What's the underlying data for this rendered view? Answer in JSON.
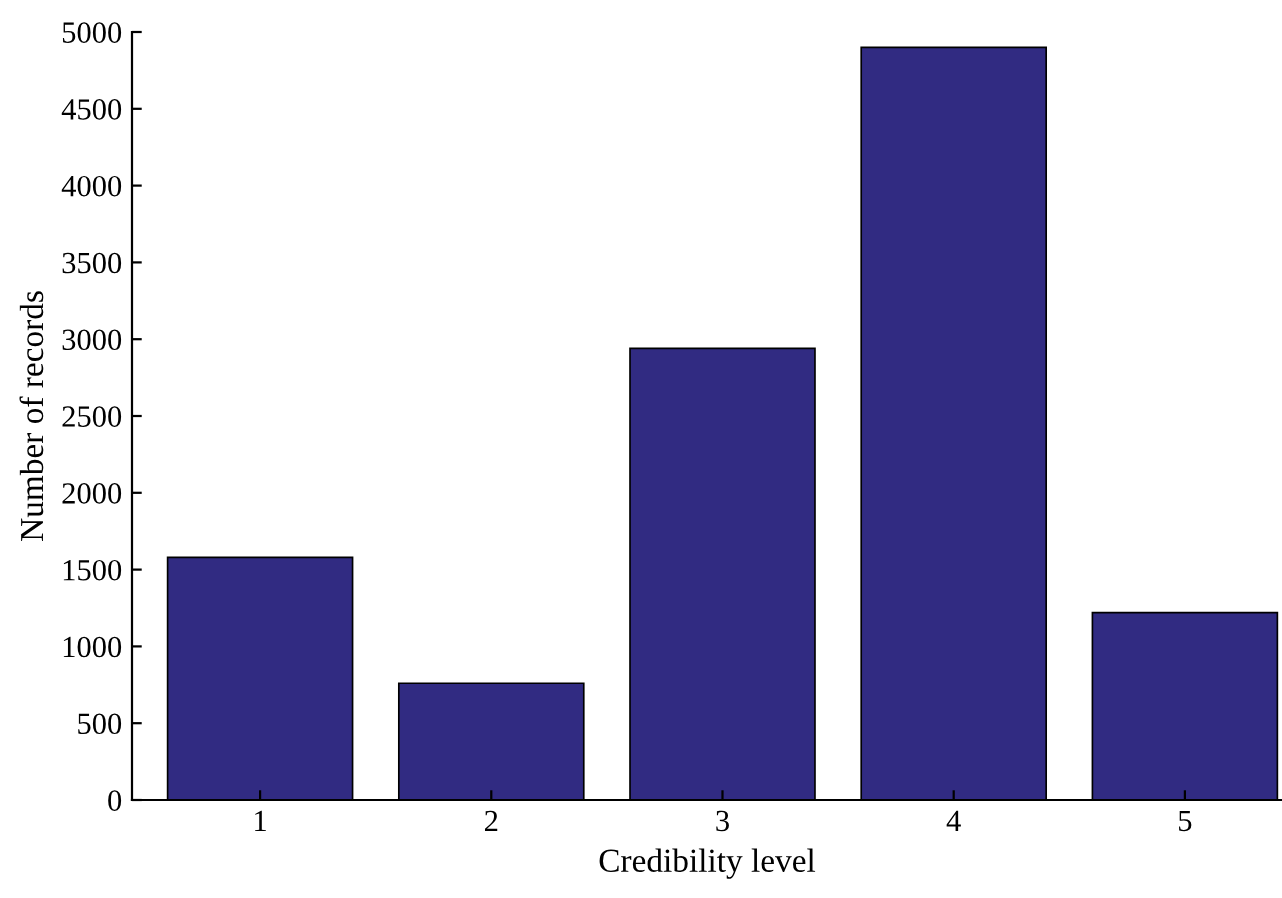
{
  "chart_data": {
    "type": "bar",
    "xlabel": "Credibility level",
    "ylabel": "Number of records",
    "categories": [
      "1",
      "2",
      "3",
      "4",
      "5"
    ],
    "values": [
      1580,
      760,
      2940,
      4900,
      1220
    ],
    "color": "#312b82",
    "ylim": [
      0,
      5000
    ],
    "yticks": [
      0,
      500,
      1000,
      1500,
      2000,
      2500,
      3000,
      3500,
      4000,
      4500,
      5000
    ],
    "grid": false,
    "legend": false
  }
}
